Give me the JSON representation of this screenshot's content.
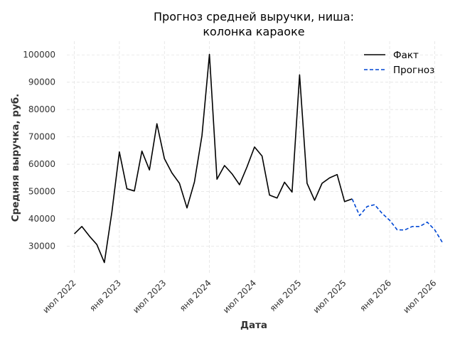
{
  "chart_data": {
    "type": "line",
    "title_lines": [
      "Прогноз средней выручки, ниша:",
      "колонка караоке"
    ],
    "xlabel": "Дата",
    "ylabel": "Средняя выручка, руб.",
    "grid": true,
    "legend_position": "top-right",
    "x_ticks": [
      "июл 2022",
      "янв 2023",
      "июл 2023",
      "янв 2024",
      "июл 2024",
      "янв 2025",
      "июл 2025",
      "янв 2026",
      "июл 2026"
    ],
    "y_ticks": [
      30000,
      40000,
      50000,
      60000,
      70000,
      80000,
      90000,
      100000
    ],
    "ylim": [
      20000,
      105000
    ],
    "xlim": [
      "2022-06",
      "2026-08"
    ],
    "series": [
      {
        "name": "Факт",
        "style": "solid",
        "color": "#000000",
        "x": [
          "2022-07",
          "2022-08",
          "2022-09",
          "2022-10",
          "2022-11",
          "2022-12",
          "2023-01",
          "2023-02",
          "2023-03",
          "2023-04",
          "2023-05",
          "2023-06",
          "2023-07",
          "2023-08",
          "2023-09",
          "2023-10",
          "2023-11",
          "2023-12",
          "2024-01",
          "2024-02",
          "2024-03",
          "2024-04",
          "2024-05",
          "2024-06",
          "2024-07",
          "2024-08",
          "2024-09",
          "2024-10",
          "2024-11",
          "2024-12",
          "2025-01",
          "2025-02",
          "2025-03",
          "2025-04",
          "2025-05",
          "2025-06",
          "2025-07",
          "2025-08"
        ],
        "values": [
          34500,
          37200,
          33700,
          30600,
          24000,
          42500,
          64500,
          51000,
          50200,
          64800,
          57900,
          74800,
          62000,
          56800,
          53000,
          44000,
          53500,
          70500,
          100200,
          54500,
          59500,
          56500,
          52500,
          59000,
          66300,
          63000,
          48700,
          47600,
          53400,
          49800,
          92700,
          53000,
          46800,
          53000,
          55000,
          56200,
          46300,
          47300
        ]
      },
      {
        "name": "Прогноз",
        "style": "dashed",
        "color": "#0047d4",
        "x": [
          "2025-08",
          "2025-09",
          "2025-10",
          "2025-11",
          "2025-12",
          "2026-01",
          "2026-02",
          "2026-03",
          "2026-04",
          "2026-05",
          "2026-06",
          "2026-07",
          "2026-08"
        ],
        "values": [
          47300,
          41200,
          44500,
          45200,
          42000,
          39500,
          36000,
          35900,
          37200,
          37200,
          38800,
          36000,
          31500
        ]
      }
    ]
  }
}
